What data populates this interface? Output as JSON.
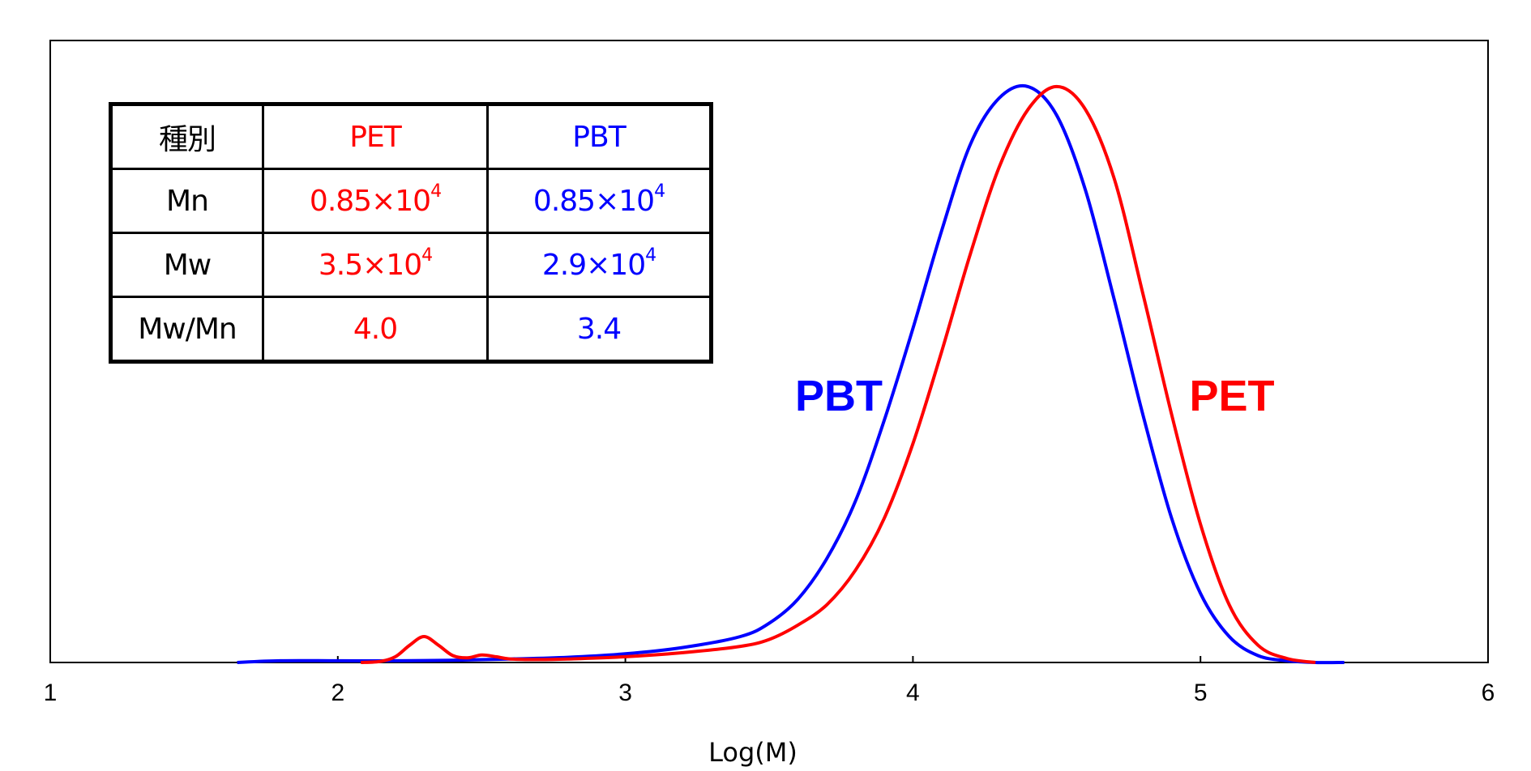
{
  "colors": {
    "pet": "#ff0000",
    "pbt": "#0000ff",
    "axis": "#000000"
  },
  "chart_data": {
    "type": "line",
    "title": "",
    "xlabel": "Log(M)",
    "ylabel": "",
    "xlim": [
      1,
      6
    ],
    "ylim": [
      0,
      1.08
    ],
    "x_ticks": [
      "1",
      "2",
      "3",
      "4",
      "5",
      "6"
    ],
    "y_ticks": [],
    "grid": false,
    "annotations": [
      {
        "text": "PBT",
        "series": "PBT"
      },
      {
        "text": "PET",
        "series": "PET"
      }
    ],
    "series": [
      {
        "name": "PET",
        "color": "#ff0000",
        "x": [
          2.08,
          2.15,
          2.2,
          2.25,
          2.3,
          2.35,
          2.4,
          2.45,
          2.5,
          2.55,
          2.6,
          2.7,
          2.8,
          3.0,
          3.2,
          3.4,
          3.5,
          3.6,
          3.7,
          3.8,
          3.9,
          4.0,
          4.1,
          4.2,
          4.3,
          4.4,
          4.5,
          4.6,
          4.7,
          4.8,
          4.9,
          5.0,
          5.1,
          5.2,
          5.3,
          5.4
        ],
        "y": [
          0.0,
          0.002,
          0.01,
          0.03,
          0.045,
          0.03,
          0.012,
          0.008,
          0.013,
          0.01,
          0.006,
          0.005,
          0.006,
          0.01,
          0.017,
          0.028,
          0.04,
          0.065,
          0.1,
          0.16,
          0.25,
          0.38,
          0.54,
          0.71,
          0.86,
          0.96,
          1.0,
          0.96,
          0.84,
          0.64,
          0.43,
          0.24,
          0.1,
          0.03,
          0.007,
          0.0
        ]
      },
      {
        "name": "PBT",
        "color": "#0000ff",
        "x": [
          1.65,
          1.8,
          2.0,
          2.2,
          2.4,
          2.6,
          2.8,
          3.0,
          3.2,
          3.4,
          3.5,
          3.6,
          3.7,
          3.8,
          3.9,
          4.0,
          4.1,
          4.2,
          4.3,
          4.4,
          4.5,
          4.6,
          4.7,
          4.8,
          4.9,
          5.0,
          5.1,
          5.2,
          5.3,
          5.4,
          5.5
        ],
        "y": [
          0.0,
          0.003,
          0.003,
          0.003,
          0.004,
          0.006,
          0.009,
          0.015,
          0.026,
          0.045,
          0.068,
          0.11,
          0.18,
          0.28,
          0.42,
          0.58,
          0.75,
          0.9,
          0.98,
          1.0,
          0.95,
          0.82,
          0.63,
          0.43,
          0.25,
          0.12,
          0.045,
          0.012,
          0.003,
          0.0,
          0.0
        ]
      }
    ]
  },
  "table": {
    "header": {
      "label": "種別",
      "pet": "PET",
      "pbt": "PBT"
    },
    "rows": [
      {
        "label": "Mn",
        "pet_base": "0.85×10",
        "pet_exp": "4",
        "pbt_base": "0.85×10",
        "pbt_exp": "4"
      },
      {
        "label": "Mw",
        "pet_base": "3.5×10",
        "pet_exp": "4",
        "pbt_base": "2.9×10",
        "pbt_exp": "4"
      },
      {
        "label": "Mw/Mn",
        "pet_base": "4.0",
        "pet_exp": "",
        "pbt_base": "3.4",
        "pbt_exp": ""
      }
    ]
  }
}
